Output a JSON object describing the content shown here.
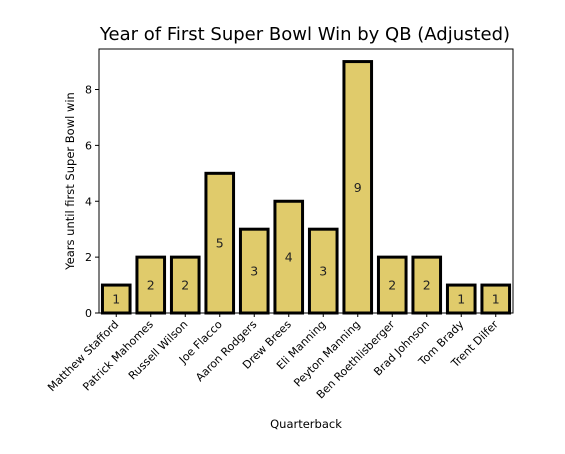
{
  "chart_data": {
    "type": "bar",
    "title": "Year of First Super Bowl Win by QB (Adjusted)",
    "xlabel": "Quarterback",
    "ylabel": "Years until first Super Bowl win",
    "categories": [
      "Matthew Stafford",
      "Patrick Mahomes",
      "Russell Wilson",
      "Joe Flacco",
      "Aaron Rodgers",
      "Drew Brees",
      "Eli Manning",
      "Peyton Manning",
      "Ben Roethlisberger",
      "Brad Johnson",
      "Tom Brady",
      "Trent Dilfer"
    ],
    "values": [
      1,
      2,
      2,
      5,
      3,
      4,
      3,
      9,
      2,
      2,
      1,
      1
    ],
    "data_labels": [
      "1",
      "2",
      "2",
      "5",
      "3",
      "4",
      "3",
      "9",
      "2",
      "2",
      "1",
      "1"
    ],
    "yticks": [
      "0",
      "2",
      "4",
      "6",
      "8"
    ],
    "ylim": [
      0,
      9.45
    ],
    "grid": false,
    "bar_color": "#e0cb6b",
    "bar_edge_color": "#000000"
  }
}
